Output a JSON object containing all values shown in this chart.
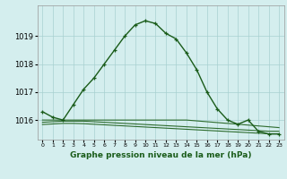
{
  "title": "Graphe pression niveau de la mer (hPa)",
  "bg_color": "#d4eeee",
  "grid_color": "#a8d0d0",
  "line_color_main": "#1a5c1a",
  "line_color_flat": "#2d6b2d",
  "x_labels": [
    "0",
    "1",
    "2",
    "3",
    "4",
    "5",
    "6",
    "7",
    "8",
    "9",
    "10",
    "11",
    "12",
    "13",
    "14",
    "15",
    "16",
    "17",
    "18",
    "19",
    "20",
    "21",
    "22",
    "23"
  ],
  "main_series": [
    1016.3,
    1016.1,
    1016.0,
    1016.55,
    1017.1,
    1017.5,
    1018.0,
    1018.5,
    1019.0,
    1019.4,
    1019.55,
    1019.45,
    1019.1,
    1018.9,
    1018.4,
    1017.8,
    1017.0,
    1016.4,
    1016.0,
    1015.85,
    1016.0,
    1015.6,
    1015.5,
    1015.5
  ],
  "flat_series1": [
    1016.0,
    1016.0,
    1016.0,
    1016.0,
    1016.0,
    1016.0,
    1016.0,
    1016.0,
    1016.0,
    1016.0,
    1016.0,
    1016.0,
    1016.0,
    1016.0,
    1016.0,
    1015.97,
    1015.94,
    1015.91,
    1015.88,
    1015.85,
    1015.82,
    1015.79,
    1015.76,
    1015.73
  ],
  "flat_series2": [
    1015.92,
    1015.94,
    1015.96,
    1015.96,
    1015.96,
    1015.94,
    1015.92,
    1015.9,
    1015.88,
    1015.86,
    1015.84,
    1015.82,
    1015.8,
    1015.78,
    1015.76,
    1015.74,
    1015.72,
    1015.7,
    1015.68,
    1015.66,
    1015.64,
    1015.62,
    1015.6,
    1015.6
  ],
  "flat_series3": [
    1015.84,
    1015.86,
    1015.88,
    1015.88,
    1015.87,
    1015.85,
    1015.83,
    1015.81,
    1015.79,
    1015.77,
    1015.75,
    1015.73,
    1015.71,
    1015.69,
    1015.67,
    1015.65,
    1015.63,
    1015.61,
    1015.59,
    1015.57,
    1015.55,
    1015.53,
    1015.51,
    1015.51
  ],
  "yticks": [
    1016,
    1017,
    1018,
    1019
  ],
  "ylim": [
    1015.3,
    1020.1
  ],
  "xlim": [
    -0.5,
    23.5
  ],
  "ylabel_fontsize": 6,
  "xlabel_fontsize": 6.5
}
